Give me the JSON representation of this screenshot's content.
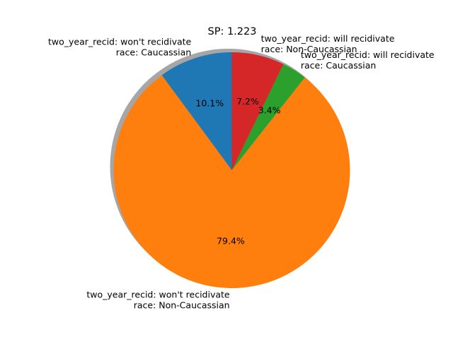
{
  "chart_data": {
    "type": "pie",
    "title": "SP: 1.223",
    "slices": [
      {
        "label_lines": [
          "two_year_recid: won't recidivate",
          "race: Caucassian"
        ],
        "value": 10.1,
        "pct_label": "10.1%",
        "color": "#1f77b4"
      },
      {
        "label_lines": [
          "two_year_recid: won't recidivate",
          "race: Non-Caucassian"
        ],
        "value": 79.4,
        "pct_label": "79.4%",
        "color": "#ff7f0e"
      },
      {
        "label_lines": [
          "two_year_recid: will recidivate",
          "race: Caucassian"
        ],
        "value": 3.4,
        "pct_label": "3.4%",
        "color": "#2ca02c"
      },
      {
        "label_lines": [
          "two_year_recid: will recidivate",
          "race: Non-Caucassian"
        ],
        "value": 7.2,
        "pct_label": "7.2%",
        "color": "#d62728"
      }
    ],
    "start_angle_deg": 90,
    "direction": "counterclockwise",
    "shadow": true
  }
}
